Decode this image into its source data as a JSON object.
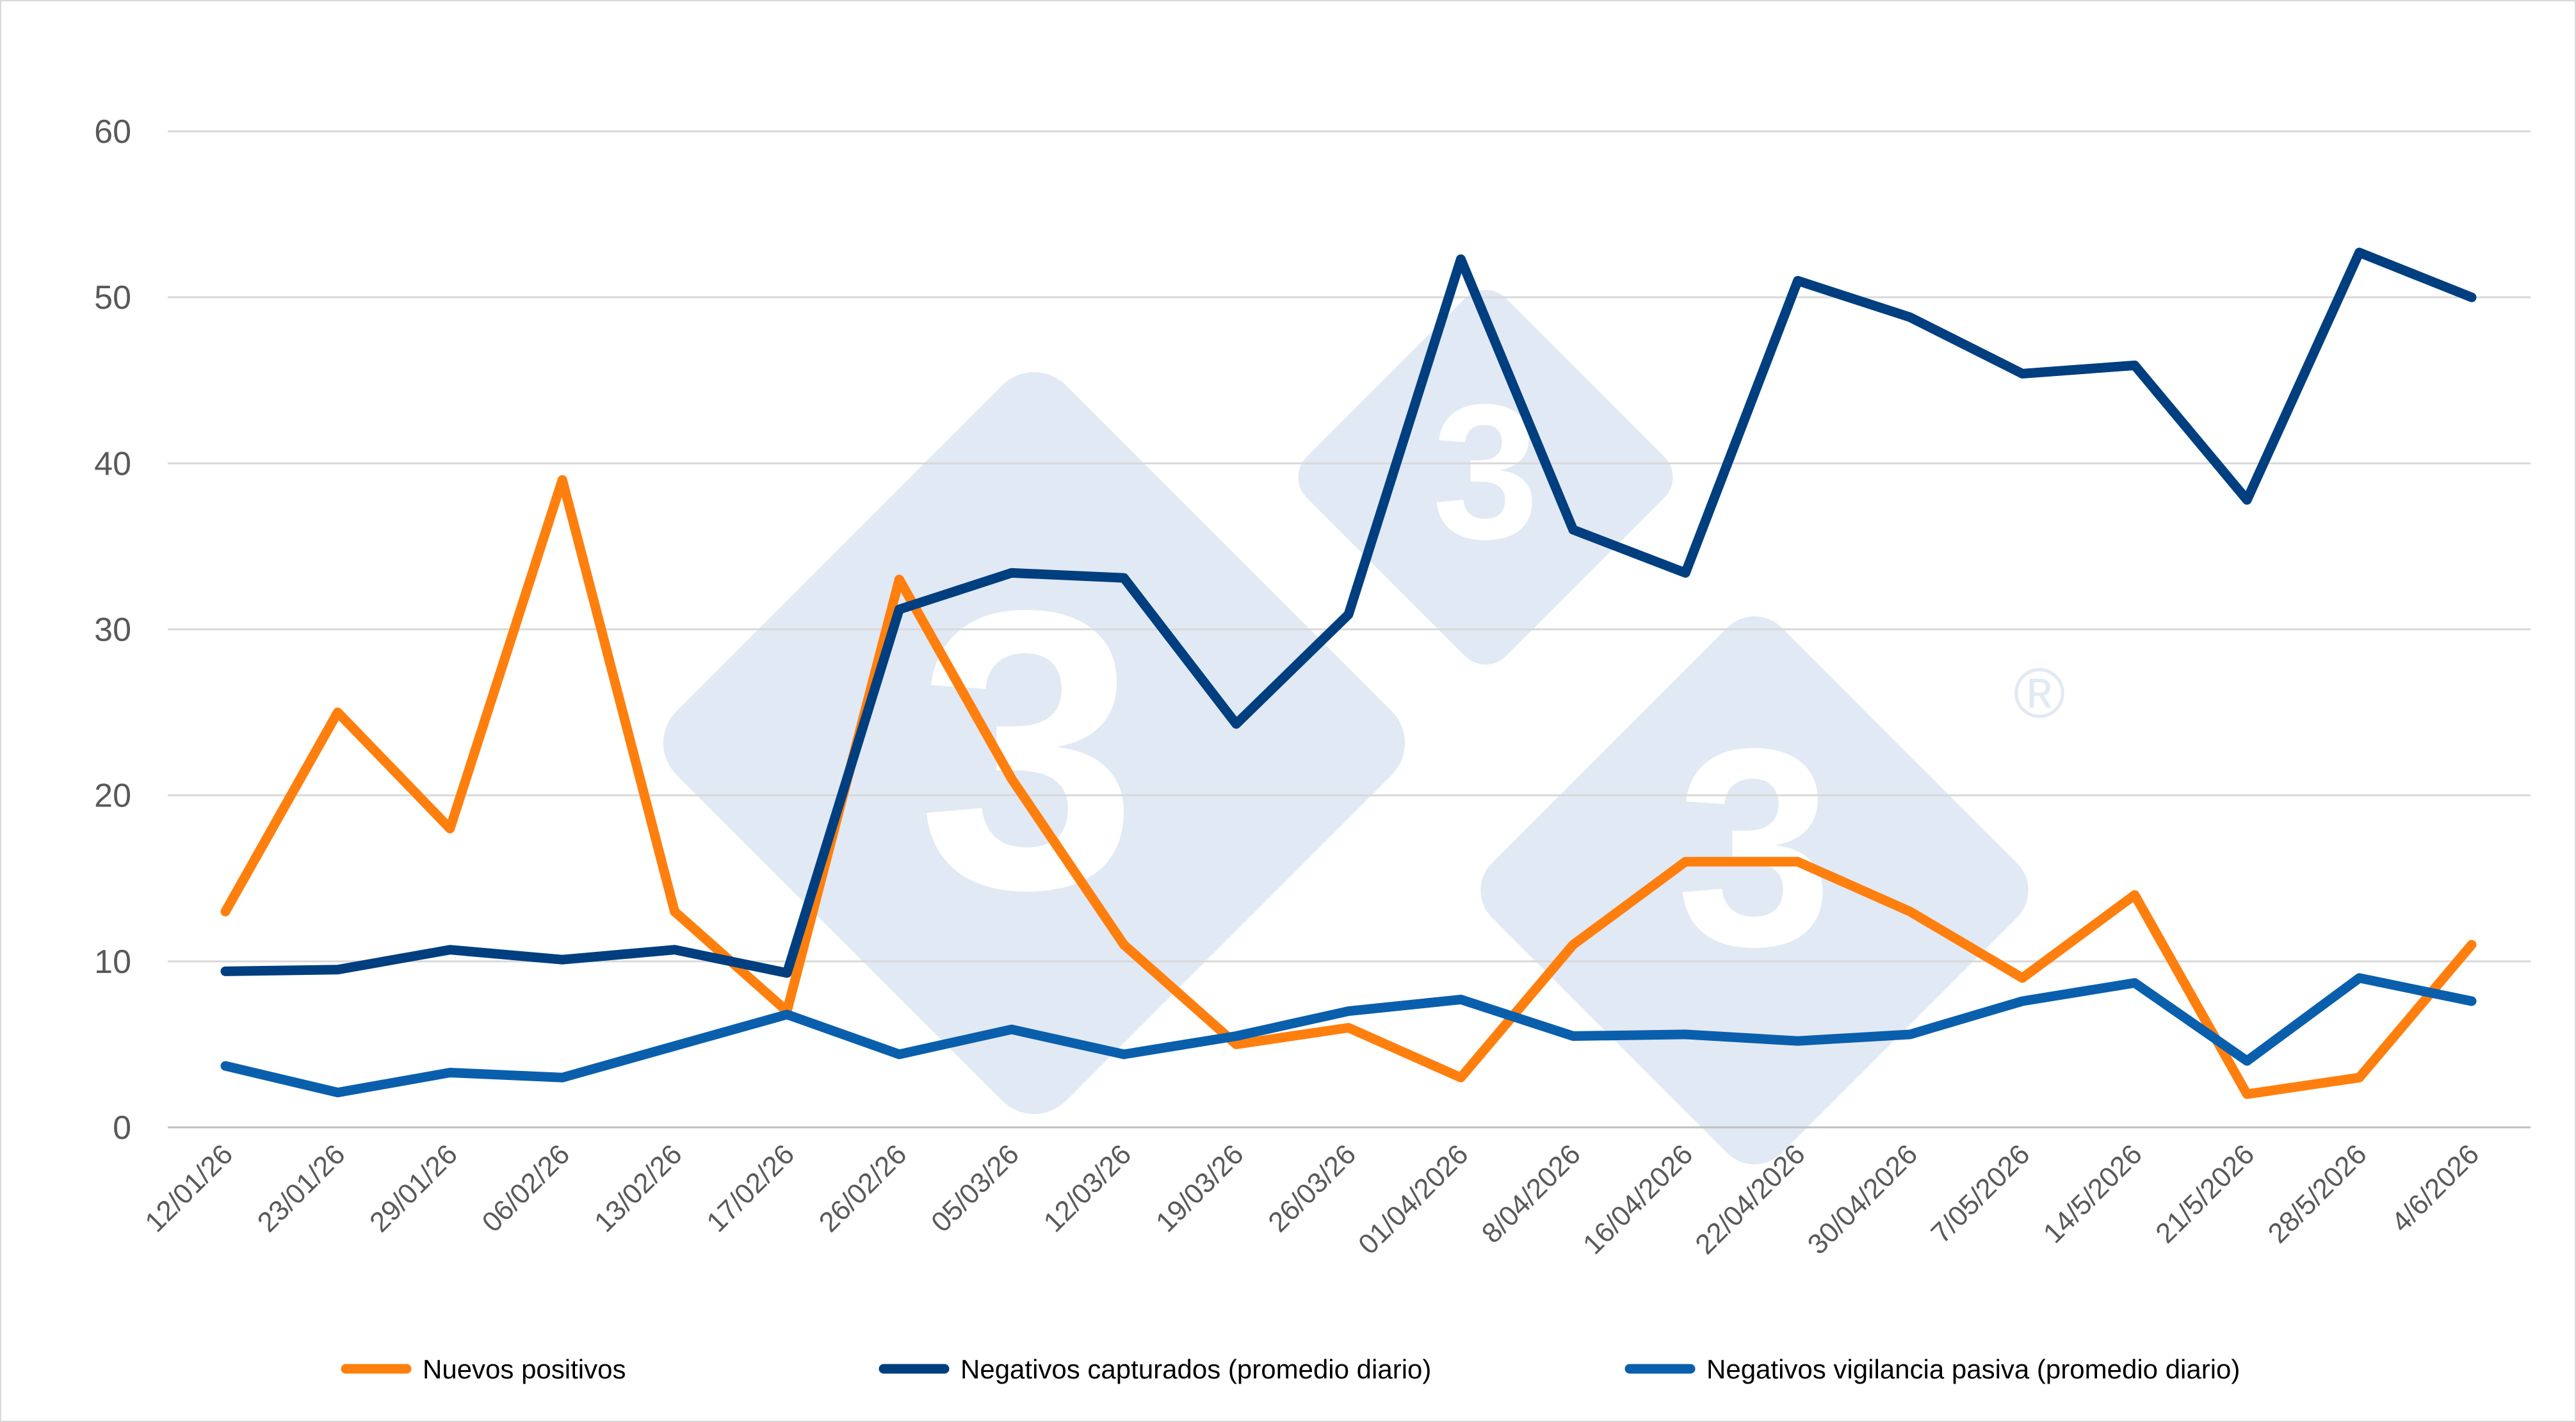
{
  "chart_data": {
    "type": "line",
    "title": "",
    "xlabel": "",
    "ylabel": "",
    "ylim": [
      0,
      60
    ],
    "yticks": [
      0,
      10,
      20,
      30,
      40,
      50,
      60
    ],
    "grid": "horizontal",
    "legend_position": "bottom",
    "categories": [
      "12/01/26",
      "23/01/26",
      "29/01/26",
      "06/02/26",
      "13/02/26",
      "17/02/26",
      "26/02/26",
      "05/03/26",
      "12/03/26",
      "19/03/26",
      "26/03/26",
      "01/04/2026",
      "8/04/2026",
      "16/04/2026",
      "22/04/2026",
      "30/04/2026",
      "7/05/2026",
      "14/5/2026",
      "21/5/2026",
      "28/5/2026",
      "4/6/2026"
    ],
    "series": [
      {
        "name": "Nuevos positivos",
        "color": "#ff7f0e",
        "values": [
          13,
          25,
          18,
          39,
          13,
          7,
          33,
          21,
          11,
          5,
          6,
          3,
          11,
          16,
          16,
          13,
          9,
          14,
          2,
          3,
          11
        ]
      },
      {
        "name": "Negativos capturados (promedio diario)",
        "color": "#003f7f",
        "values": [
          9.4,
          9.5,
          10.7,
          10.1,
          10.7,
          9.3,
          31.2,
          33.4,
          33.1,
          24.3,
          30.9,
          52.3,
          36.0,
          33.4,
          51.0,
          48.8,
          45.4,
          45.9,
          37.8,
          52.7,
          50.0
        ]
      },
      {
        "name": "Negativos vigilancia pasiva (promedio diario)",
        "color": "#0a5fad",
        "values": [
          3.7,
          2.1,
          3.3,
          3.0,
          4.9,
          6.8,
          4.4,
          5.9,
          4.4,
          5.5,
          7.0,
          7.7,
          5.5,
          5.6,
          5.2,
          5.6,
          7.6,
          8.7,
          4.0,
          9.0,
          7.6
        ]
      }
    ],
    "watermark": {
      "glyph": "3",
      "registered_mark": "®"
    }
  }
}
